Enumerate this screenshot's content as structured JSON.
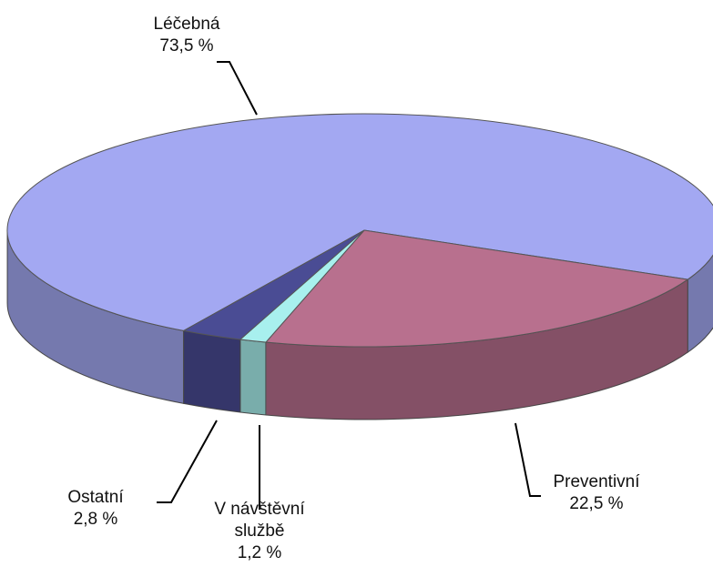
{
  "chart_data": {
    "type": "pie3d",
    "categories": [
      "Léčebná",
      "Preventivní",
      "V návštěvní službě",
      "Ostatní"
    ],
    "values": [
      73.5,
      22.5,
      1.2,
      2.8
    ],
    "value_labels": [
      "73,5 %",
      "22,5 %",
      "1,2 %",
      "2,8 %"
    ],
    "colors": [
      "#a3a8f2",
      "#b8708e",
      "#a8f0ee",
      "#4a4c94"
    ]
  }
}
